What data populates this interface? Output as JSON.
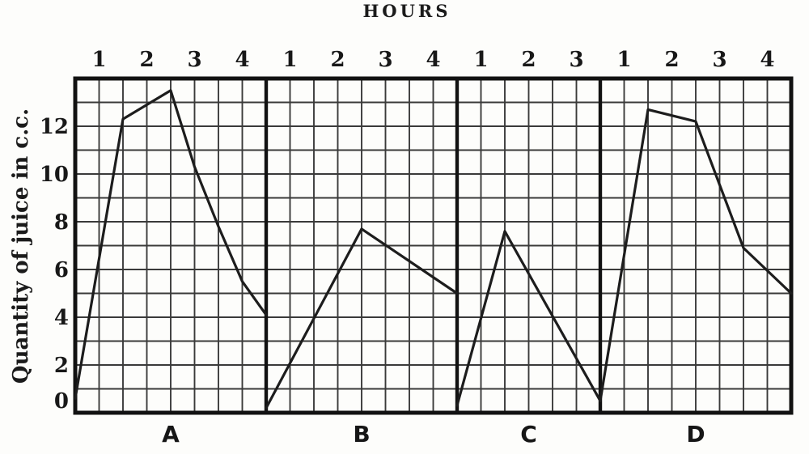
{
  "chart_data": {
    "type": "line",
    "title": "HOURS",
    "ylabel": "Quantity of juice in c.c.",
    "ylim": [
      0,
      14
    ],
    "yticks": [
      0,
      2,
      4,
      6,
      8,
      10,
      12
    ],
    "grid": "on",
    "grid_square": {
      "hours": 0.5,
      "cc": 1
    },
    "legend": "none",
    "x_unit": "hours",
    "sections": [
      {
        "label": "A",
        "hours": 4,
        "hour_ticks": [
          1,
          2,
          3,
          4
        ],
        "points": [
          [
            0,
            0.6
          ],
          [
            1,
            12.3
          ],
          [
            2,
            13.5
          ],
          [
            2.5,
            10.3
          ],
          [
            3,
            7.8
          ],
          [
            3.5,
            5.5
          ],
          [
            4,
            4.1
          ]
        ]
      },
      {
        "label": "B",
        "hours": 4,
        "hour_ticks": [
          1,
          2,
          3,
          4
        ],
        "points": [
          [
            0,
            0.2
          ],
          [
            2,
            7.7
          ],
          [
            4,
            5.0
          ]
        ]
      },
      {
        "label": "C",
        "hours": 3,
        "hour_ticks": [
          1,
          2,
          3
        ],
        "points": [
          [
            0,
            0.3
          ],
          [
            1,
            7.6
          ],
          [
            3,
            0.5
          ]
        ]
      },
      {
        "label": "D",
        "hours": 4,
        "hour_ticks": [
          1,
          2,
          3,
          4
        ],
        "points": [
          [
            0,
            0.5
          ],
          [
            1,
            12.7
          ],
          [
            2,
            12.2
          ],
          [
            3,
            6.9
          ],
          [
            4,
            5.0
          ]
        ]
      }
    ],
    "colors": {
      "ink": "#1d1d1d",
      "grid_line": "#262626",
      "border": "#121212",
      "paper": "#fdfdfb"
    }
  }
}
